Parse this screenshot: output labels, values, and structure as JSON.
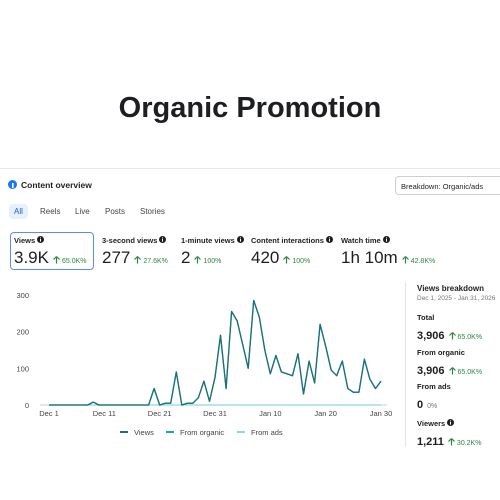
{
  "title": "Organic Promotion",
  "panel": {
    "heading": "Content overview",
    "dropdown": "Breakdown: Organic/ads",
    "tabs": [
      "All",
      "Reels",
      "Live",
      "Posts",
      "Stories"
    ],
    "selected_tab": 0,
    "metrics": [
      {
        "label": "Views",
        "value": "3.9K",
        "change": "65.0K%",
        "selected": true
      },
      {
        "label": "3-second views",
        "value": "277",
        "change": "27.6K%",
        "selected": false
      },
      {
        "label": "1-minute views",
        "value": "2",
        "change": "100%",
        "selected": false
      },
      {
        "label": "Content interactions",
        "value": "420",
        "change": "100%",
        "selected": false
      },
      {
        "label": "Watch time",
        "value": "1h 10m",
        "change": "42.8K%",
        "selected": false
      }
    ],
    "breakdown": {
      "title": "Views breakdown",
      "date_range": "Dec 1, 2025 - Jan 31, 2026",
      "items": [
        {
          "label": "Total",
          "value": "3,906",
          "change": "65.0K%",
          "trend": "up"
        },
        {
          "label": "From organic",
          "value": "3,906",
          "change": "65.0K%",
          "trend": "up"
        },
        {
          "label": "From ads",
          "value": "0",
          "change": "0%",
          "trend": "flat"
        },
        {
          "label": "Viewers",
          "value": "1,211",
          "change": "30.2K%",
          "trend": "up"
        }
      ]
    }
  },
  "chart_data": {
    "type": "line",
    "categories": [
      "Dec 1",
      null,
      null,
      null,
      null,
      null,
      null,
      null,
      null,
      null,
      "Dec 11",
      null,
      null,
      null,
      null,
      null,
      null,
      null,
      null,
      null,
      "Dec 21",
      null,
      null,
      null,
      null,
      null,
      null,
      null,
      null,
      null,
      "Dec 31",
      null,
      null,
      null,
      null,
      null,
      null,
      null,
      null,
      null,
      "Jan 10",
      null,
      null,
      null,
      null,
      null,
      null,
      null,
      null,
      null,
      "Jan 20",
      null,
      null,
      null,
      null,
      null,
      null,
      null,
      null,
      null,
      "Jan 30"
    ],
    "series": [
      {
        "name": "Views",
        "color": "#1d6f7a",
        "values": [
          0,
          0,
          0,
          0,
          0,
          0,
          0,
          0,
          8,
          0,
          0,
          0,
          0,
          0,
          0,
          0,
          0,
          0,
          0,
          45,
          0,
          5,
          5,
          90,
          0,
          5,
          5,
          20,
          65,
          10,
          75,
          190,
          45,
          255,
          230,
          165,
          100,
          285,
          240,
          150,
          85,
          135,
          90,
          85,
          80,
          140,
          30,
          120,
          60,
          220,
          160,
          95,
          80,
          120,
          45,
          35,
          35,
          125,
          70,
          45,
          65
        ]
      },
      {
        "name": "From organic",
        "color": "#2a9fa3",
        "values": [
          0,
          0,
          0,
          0,
          0,
          0,
          0,
          0,
          8,
          0,
          0,
          0,
          0,
          0,
          0,
          0,
          0,
          0,
          0,
          45,
          0,
          5,
          5,
          90,
          0,
          5,
          5,
          20,
          65,
          10,
          75,
          190,
          45,
          255,
          230,
          165,
          100,
          285,
          240,
          150,
          85,
          135,
          90,
          85,
          80,
          140,
          30,
          120,
          60,
          220,
          160,
          95,
          80,
          120,
          45,
          35,
          35,
          125,
          70,
          45,
          65
        ]
      },
      {
        "name": "From ads",
        "color": "#8fd3e8",
        "values": [
          0,
          0,
          0,
          0,
          0,
          0,
          0,
          0,
          0,
          0,
          0,
          0,
          0,
          0,
          0,
          0,
          0,
          0,
          0,
          0,
          0,
          0,
          0,
          0,
          0,
          0,
          0,
          0,
          0,
          0,
          0,
          0,
          0,
          0,
          0,
          0,
          0,
          0,
          0,
          0,
          0,
          0,
          0,
          0,
          0,
          0,
          0,
          0,
          0,
          0,
          0,
          0,
          0,
          0,
          0,
          0,
          0,
          0,
          0,
          0,
          0
        ]
      }
    ],
    "ylim": [
      0,
      300
    ],
    "yticks": [
      0,
      100,
      200,
      300
    ],
    "grid": false,
    "legend": "bottom"
  }
}
